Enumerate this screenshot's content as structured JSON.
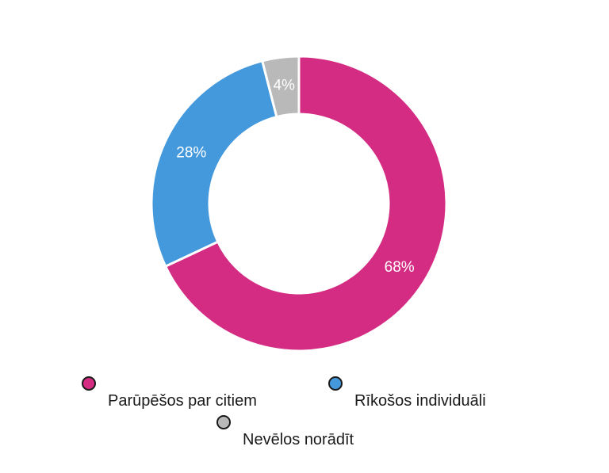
{
  "chart_data": {
    "type": "pie",
    "donut": true,
    "title": "",
    "categories": [
      "Parūpēšos par citiem",
      "Rīkošos individuāli",
      "Nevēlos norādīt"
    ],
    "values": [
      68,
      28,
      4
    ],
    "labels": [
      "68%",
      "28%",
      "4%"
    ],
    "colors": [
      "#d42b83",
      "#4499dd",
      "#b9b9b9"
    ],
    "legend_placement": "bottom"
  },
  "legend": [
    {
      "label": "Parūpēšos par citiem",
      "color": "#d42b83"
    },
    {
      "label": "Rīkošos individuāli",
      "color": "#4499dd"
    },
    {
      "label": "Nevēlos norādīt",
      "color": "#b9b9b9"
    }
  ]
}
